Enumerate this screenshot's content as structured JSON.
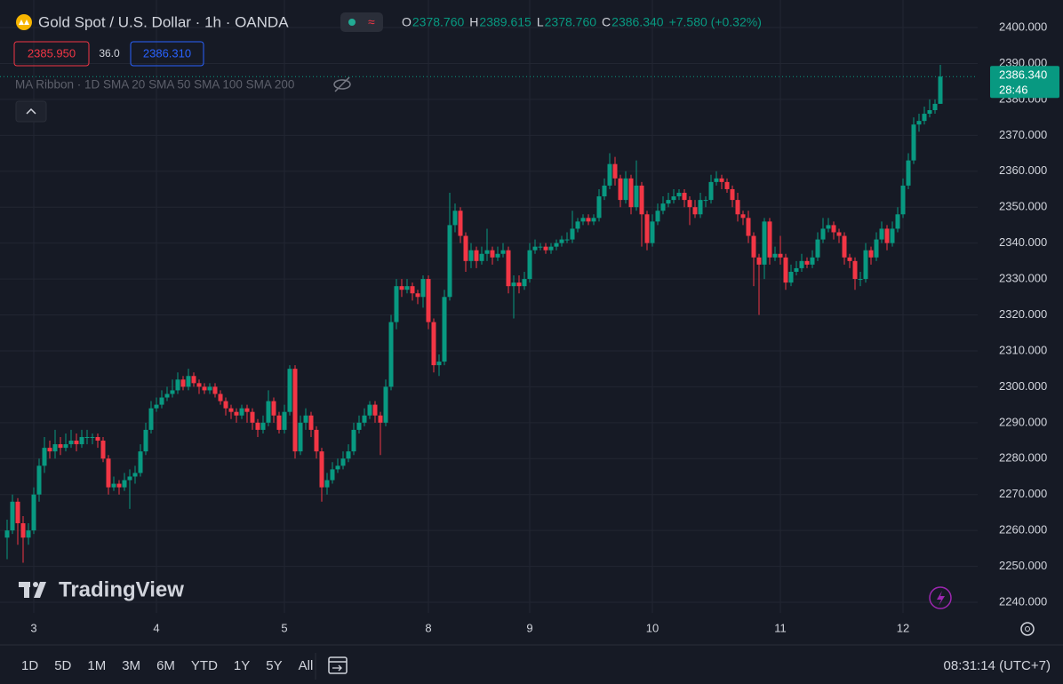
{
  "header": {
    "title": "Gold Spot / U.S. Dollar · 1h · OANDA",
    "ohlc_legend": [
      {
        "label": "O",
        "value": "2378.760"
      },
      {
        "label": "H",
        "value": "2389.615"
      },
      {
        "label": "L",
        "value": "2378.760"
      },
      {
        "label": "C",
        "value": "2386.340"
      }
    ],
    "change": "+7.580 (+0.32%)",
    "bid": "2385.950",
    "spread": "36.0",
    "ask": "2386.310",
    "indicator": "MA Ribbon · 1D SMA 20 SMA 50 SMA 100 SMA 200"
  },
  "chart_data": {
    "type": "candlestick",
    "up_color": "#089981",
    "down_color": "#f23645",
    "grid": true,
    "ylim": [
      2240,
      2400
    ],
    "yticks": [
      {
        "value": 2240,
        "label": "2240.000"
      },
      {
        "value": 2250,
        "label": "2250.000"
      },
      {
        "value": 2260,
        "label": "2260.000"
      },
      {
        "value": 2270,
        "label": "2270.000"
      },
      {
        "value": 2280,
        "label": "2280.000"
      },
      {
        "value": 2290,
        "label": "2290.000"
      },
      {
        "value": 2300,
        "label": "2300.000"
      },
      {
        "value": 2310,
        "label": "2310.000"
      },
      {
        "value": 2320,
        "label": "2320.000"
      },
      {
        "value": 2330,
        "label": "2330.000"
      },
      {
        "value": 2340,
        "label": "2340.000"
      },
      {
        "value": 2350,
        "label": "2350.000"
      },
      {
        "value": 2360,
        "label": "2360.000"
      },
      {
        "value": 2370,
        "label": "2370.000"
      },
      {
        "value": 2380,
        "label": "2380.000"
      },
      {
        "value": 2390,
        "label": "2390.000"
      },
      {
        "value": 2400,
        "label": "2400.000"
      }
    ],
    "xticks": [
      {
        "value": 5,
        "label": "3"
      },
      {
        "value": 28,
        "label": "4"
      },
      {
        "value": 52,
        "label": "5"
      },
      {
        "value": 79,
        "label": "8"
      },
      {
        "value": 98,
        "label": "9"
      },
      {
        "value": 121,
        "label": "10"
      },
      {
        "value": 145,
        "label": "11"
      },
      {
        "value": 168,
        "label": "12"
      }
    ],
    "candles": [
      [
        2258,
        2263,
        2252,
        2260
      ],
      [
        2260,
        2270,
        2259,
        2268
      ],
      [
        2268,
        2269,
        2256,
        2262
      ],
      [
        2262,
        2264,
        2251,
        2258
      ],
      [
        2258,
        2262,
        2256,
        2260
      ],
      [
        2260,
        2272,
        2259,
        2270
      ],
      [
        2270,
        2280,
        2268,
        2278
      ],
      [
        2278,
        2286,
        2276,
        2283
      ],
      [
        2283,
        2285,
        2280,
        2282
      ],
      [
        2282,
        2288,
        2280,
        2284
      ],
      [
        2284,
        2286,
        2281,
        2283
      ],
      [
        2283,
        2287,
        2282,
        2284
      ],
      [
        2284,
        2288,
        2283,
        2285
      ],
      [
        2285,
        2287,
        2282,
        2284
      ],
      [
        2284,
        2288,
        2283,
        2286
      ],
      [
        2286,
        2288,
        2284,
        2286
      ],
      [
        2286,
        2287,
        2284,
        2286
      ],
      [
        2286,
        2287,
        2283,
        2285
      ],
      [
        2285,
        2286,
        2279,
        2280
      ],
      [
        2280,
        2281,
        2270,
        2272
      ],
      [
        2272,
        2275,
        2271,
        2273
      ],
      [
        2273,
        2274,
        2270,
        2272
      ],
      [
        2272,
        2276,
        2271,
        2274
      ],
      [
        2274,
        2277,
        2266,
        2275
      ],
      [
        2275,
        2278,
        2273,
        2276
      ],
      [
        2276,
        2284,
        2275,
        2282
      ],
      [
        2282,
        2290,
        2281,
        2288
      ],
      [
        2288,
        2296,
        2287,
        2294
      ],
      [
        2294,
        2297,
        2293,
        2295
      ],
      [
        2295,
        2299,
        2294,
        2297
      ],
      [
        2297,
        2300,
        2296,
        2298
      ],
      [
        2298,
        2302,
        2297,
        2299
      ],
      [
        2299,
        2304,
        2298,
        2302
      ],
      [
        2302,
        2303,
        2299,
        2300
      ],
      [
        2300,
        2305,
        2299,
        2303
      ],
      [
        2303,
        2304,
        2300,
        2301
      ],
      [
        2301,
        2302,
        2298,
        2300
      ],
      [
        2300,
        2301,
        2298,
        2299
      ],
      [
        2299,
        2301,
        2298,
        2300
      ],
      [
        2300,
        2301,
        2297,
        2298
      ],
      [
        2298,
        2299,
        2295,
        2296
      ],
      [
        2296,
        2297,
        2292,
        2294
      ],
      [
        2294,
        2295,
        2291,
        2293
      ],
      [
        2293,
        2294,
        2290,
        2292
      ],
      [
        2292,
        2295,
        2291,
        2294
      ],
      [
        2294,
        2295,
        2290,
        2293
      ],
      [
        2293,
        2294,
        2288,
        2290
      ],
      [
        2290,
        2291,
        2286,
        2288
      ],
      [
        2288,
        2292,
        2287,
        2290
      ],
      [
        2290,
        2299,
        2289,
        2296
      ],
      [
        2296,
        2297,
        2290,
        2292
      ],
      [
        2292,
        2293,
        2287,
        2288
      ],
      [
        2288,
        2295,
        2287,
        2293
      ],
      [
        2293,
        2306,
        2292,
        2305
      ],
      [
        2305,
        2306,
        2280,
        2282
      ],
      [
        2282,
        2292,
        2281,
        2290
      ],
      [
        2290,
        2294,
        2288,
        2292
      ],
      [
        2292,
        2293,
        2286,
        2288
      ],
      [
        2288,
        2289,
        2280,
        2282
      ],
      [
        2282,
        2283,
        2268,
        2272
      ],
      [
        2272,
        2276,
        2270,
        2274
      ],
      [
        2274,
        2279,
        2273,
        2277
      ],
      [
        2277,
        2280,
        2276,
        2278
      ],
      [
        2278,
        2282,
        2277,
        2280
      ],
      [
        2280,
        2284,
        2279,
        2282
      ],
      [
        2282,
        2290,
        2281,
        2288
      ],
      [
        2288,
        2292,
        2287,
        2290
      ],
      [
        2290,
        2294,
        2289,
        2292
      ],
      [
        2292,
        2296,
        2291,
        2295
      ],
      [
        2295,
        2296,
        2290,
        2292
      ],
      [
        2292,
        2293,
        2281,
        2290
      ],
      [
        2290,
        2302,
        2289,
        2300
      ],
      [
        2300,
        2320,
        2299,
        2318
      ],
      [
        2318,
        2330,
        2316,
        2328
      ],
      [
        2328,
        2330,
        2325,
        2327
      ],
      [
        2327,
        2330,
        2326,
        2328
      ],
      [
        2328,
        2329,
        2324,
        2326
      ],
      [
        2326,
        2327,
        2323,
        2325
      ],
      [
        2325,
        2331,
        2322,
        2330
      ],
      [
        2330,
        2331,
        2316,
        2318
      ],
      [
        2318,
        2319,
        2304,
        2306
      ],
      [
        2306,
        2309,
        2303,
        2307
      ],
      [
        2307,
        2327,
        2306,
        2325
      ],
      [
        2325,
        2354,
        2324,
        2345
      ],
      [
        2345,
        2351,
        2343,
        2349
      ],
      [
        2349,
        2350,
        2340,
        2342
      ],
      [
        2342,
        2343,
        2332,
        2335
      ],
      [
        2335,
        2340,
        2333,
        2338
      ],
      [
        2338,
        2339,
        2333,
        2335
      ],
      [
        2335,
        2339,
        2334,
        2337
      ],
      [
        2337,
        2344,
        2335,
        2338
      ],
      [
        2338,
        2339,
        2334,
        2336
      ],
      [
        2336,
        2339,
        2335,
        2337
      ],
      [
        2337,
        2340,
        2336,
        2338
      ],
      [
        2338,
        2339,
        2326,
        2328
      ],
      [
        2328,
        2331,
        2319,
        2329
      ],
      [
        2329,
        2331,
        2326,
        2328
      ],
      [
        2328,
        2332,
        2327,
        2330
      ],
      [
        2330,
        2340,
        2329,
        2338
      ],
      [
        2338,
        2341,
        2337,
        2339
      ],
      [
        2339,
        2340,
        2338,
        2339
      ],
      [
        2339,
        2340,
        2337,
        2338
      ],
      [
        2338,
        2340,
        2337,
        2339
      ],
      [
        2339,
        2341,
        2338,
        2340
      ],
      [
        2340,
        2342,
        2339,
        2341
      ],
      [
        2341,
        2343,
        2340,
        2341
      ],
      [
        2341,
        2349,
        2340,
        2344
      ],
      [
        2344,
        2347,
        2343,
        2346
      ],
      [
        2346,
        2348,
        2345,
        2347
      ],
      [
        2347,
        2348,
        2345,
        2346
      ],
      [
        2346,
        2348,
        2345,
        2347
      ],
      [
        2347,
        2355,
        2346,
        2353
      ],
      [
        2353,
        2358,
        2352,
        2356
      ],
      [
        2356,
        2365,
        2355,
        2362
      ],
      [
        2362,
        2364,
        2356,
        2358
      ],
      [
        2358,
        2359,
        2350,
        2352
      ],
      [
        2352,
        2360,
        2351,
        2358
      ],
      [
        2358,
        2359,
        2348,
        2350
      ],
      [
        2350,
        2363,
        2349,
        2356
      ],
      [
        2356,
        2357,
        2339,
        2348
      ],
      [
        2348,
        2349,
        2338,
        2340
      ],
      [
        2340,
        2348,
        2339,
        2346
      ],
      [
        2346,
        2351,
        2345,
        2349
      ],
      [
        2349,
        2353,
        2348,
        2351
      ],
      [
        2351,
        2354,
        2350,
        2352
      ],
      [
        2352,
        2355,
        2351,
        2353
      ],
      [
        2353,
        2355,
        2352,
        2354
      ],
      [
        2354,
        2355,
        2350,
        2352
      ],
      [
        2352,
        2353,
        2345,
        2350
      ],
      [
        2350,
        2352,
        2347,
        2348
      ],
      [
        2348,
        2354,
        2347,
        2352
      ],
      [
        2352,
        2353,
        2350,
        2352
      ],
      [
        2352,
        2359,
        2351,
        2357
      ],
      [
        2357,
        2360,
        2356,
        2358
      ],
      [
        2358,
        2359,
        2355,
        2357
      ],
      [
        2357,
        2358,
        2354,
        2355
      ],
      [
        2355,
        2356,
        2350,
        2352
      ],
      [
        2352,
        2354,
        2346,
        2348
      ],
      [
        2348,
        2349,
        2345,
        2347
      ],
      [
        2347,
        2349,
        2340,
        2342
      ],
      [
        2342,
        2343,
        2328,
        2336
      ],
      [
        2336,
        2337,
        2320,
        2334
      ],
      [
        2334,
        2347,
        2330,
        2346
      ],
      [
        2346,
        2347,
        2334,
        2336
      ],
      [
        2336,
        2339,
        2335,
        2337
      ],
      [
        2337,
        2342,
        2334,
        2336
      ],
      [
        2336,
        2337,
        2327,
        2329
      ],
      [
        2329,
        2334,
        2328,
        2332
      ],
      [
        2332,
        2335,
        2331,
        2333
      ],
      [
        2333,
        2337,
        2332,
        2335
      ],
      [
        2335,
        2336,
        2333,
        2334
      ],
      [
        2334,
        2338,
        2333,
        2336
      ],
      [
        2336,
        2343,
        2335,
        2341
      ],
      [
        2341,
        2347,
        2340,
        2344
      ],
      [
        2344,
        2347,
        2343,
        2345
      ],
      [
        2345,
        2346,
        2341,
        2343
      ],
      [
        2343,
        2344,
        2340,
        2342
      ],
      [
        2342,
        2343,
        2334,
        2336
      ],
      [
        2336,
        2337,
        2333,
        2335
      ],
      [
        2335,
        2336,
        2327,
        2330
      ],
      [
        2330,
        2332,
        2328,
        2330
      ],
      [
        2330,
        2340,
        2329,
        2338
      ],
      [
        2338,
        2339,
        2334,
        2336
      ],
      [
        2336,
        2343,
        2335,
        2341
      ],
      [
        2341,
        2346,
        2340,
        2344
      ],
      [
        2344,
        2345,
        2338,
        2340
      ],
      [
        2340,
        2346,
        2339,
        2344
      ],
      [
        2344,
        2350,
        2343,
        2348
      ],
      [
        2348,
        2358,
        2347,
        2356
      ],
      [
        2356,
        2365,
        2355,
        2363
      ],
      [
        2363,
        2375,
        2362,
        2373
      ],
      [
        2373,
        2376,
        2371,
        2374
      ],
      [
        2374,
        2378,
        2373,
        2376
      ],
      [
        2376,
        2380,
        2375,
        2377
      ],
      [
        2377,
        2380,
        2376,
        2378.76
      ],
      [
        2378.76,
        2389.615,
        2378.76,
        2386.34
      ]
    ],
    "price_tag": {
      "price": "2386.340",
      "countdown": "28:46"
    },
    "watermark": "TradingView"
  },
  "toolbar": {
    "ranges": [
      "1D",
      "5D",
      "1M",
      "3M",
      "6M",
      "YTD",
      "1Y",
      "5Y",
      "All"
    ],
    "clock": "08:31:14 (UTC+7)"
  }
}
